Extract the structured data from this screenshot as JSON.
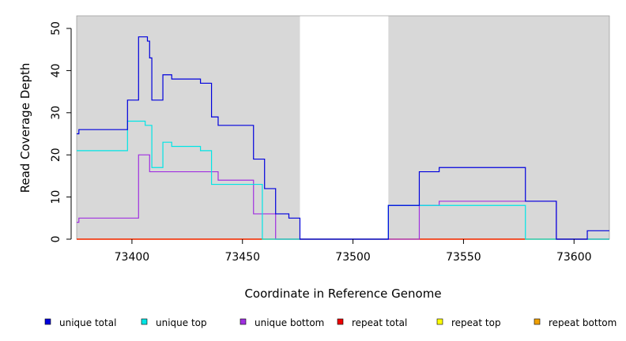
{
  "chart_data": {
    "type": "line",
    "title": "",
    "xlabel": "Coordinate in Reference Genome",
    "ylabel": "Read Coverage Depth",
    "xlim": [
      73375,
      73616
    ],
    "ylim": [
      0,
      53
    ],
    "xticks": [
      73400,
      73450,
      73500,
      73550,
      73600
    ],
    "yticks": [
      0,
      10,
      20,
      30,
      40,
      50
    ],
    "grid": false,
    "background": "#d8d8d8",
    "unshaded_region": [
      73476,
      73516
    ],
    "legend_position": "bottom",
    "series": [
      {
        "name": "unique total",
        "color": "#0000dd",
        "steps": [
          [
            73375,
            25
          ],
          [
            73376,
            26
          ],
          [
            73398,
            33
          ],
          [
            73403,
            48
          ],
          [
            73407,
            47
          ],
          [
            73408,
            43
          ],
          [
            73409,
            33
          ],
          [
            73414,
            39
          ],
          [
            73418,
            38
          ],
          [
            73431,
            37
          ],
          [
            73436,
            29
          ],
          [
            73439,
            27
          ],
          [
            73455,
            19
          ],
          [
            73460,
            12
          ],
          [
            73465,
            6
          ],
          [
            73470,
            6
          ],
          [
            73471,
            5
          ],
          [
            73476,
            0
          ],
          [
            73516,
            8
          ],
          [
            73530,
            16
          ],
          [
            73539,
            17
          ],
          [
            73578,
            9
          ],
          [
            73592,
            0
          ],
          [
            73606,
            2
          ],
          [
            73616,
            2
          ]
        ]
      },
      {
        "name": "unique top",
        "color": "#00e5e5",
        "steps": [
          [
            73375,
            21
          ],
          [
            73398,
            28
          ],
          [
            73406,
            27
          ],
          [
            73409,
            17
          ],
          [
            73414,
            23
          ],
          [
            73418,
            22
          ],
          [
            73431,
            21
          ],
          [
            73436,
            13
          ],
          [
            73455,
            13
          ],
          [
            73459,
            0
          ],
          [
            73516,
            8
          ],
          [
            73530,
            8
          ],
          [
            73539,
            8
          ],
          [
            73578,
            0
          ],
          [
            73616,
            0
          ]
        ]
      },
      {
        "name": "unique bottom",
        "color": "#a030e0",
        "steps": [
          [
            73375,
            4
          ],
          [
            73376,
            5
          ],
          [
            73403,
            20
          ],
          [
            73408,
            16
          ],
          [
            73436,
            16
          ],
          [
            73439,
            14
          ],
          [
            73455,
            6
          ],
          [
            73465,
            0
          ],
          [
            73530,
            8
          ],
          [
            73539,
            9
          ],
          [
            73592,
            0
          ],
          [
            73616,
            0
          ]
        ]
      },
      {
        "name": "repeat total",
        "color": "#ee0000",
        "steps": [
          [
            73375,
            0
          ],
          [
            73616,
            0
          ]
        ]
      },
      {
        "name": "repeat top",
        "color": "#ffff00",
        "steps": [
          [
            73375,
            0
          ],
          [
            73616,
            0
          ]
        ]
      },
      {
        "name": "repeat bottom",
        "color": "#f0a000",
        "steps": [
          [
            73375,
            0
          ],
          [
            73616,
            0
          ]
        ]
      }
    ]
  }
}
